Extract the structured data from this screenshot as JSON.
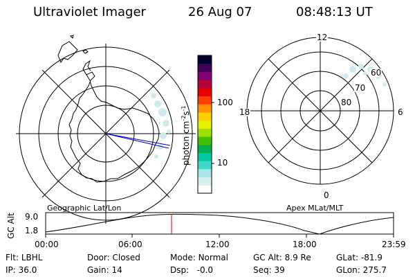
{
  "header": {
    "instrument": "Ultraviolet Imager",
    "date": "26 Aug 07",
    "time": "08:48:13 UT"
  },
  "colorbar": {
    "unit_prefix": "photon cm",
    "unit_exp1": "-2",
    "unit_mid": "s",
    "unit_exp2": "-1",
    "ticks": [
      "100",
      "10"
    ],
    "colors": [
      "#ffffff",
      "#d8f0f0",
      "#a8e8e8",
      "#40d8c8",
      "#00c8a0",
      "#00b050",
      "#40c000",
      "#a0e000",
      "#e8f000",
      "#ffd000",
      "#ff9000",
      "#ff4000",
      "#e80000",
      "#b8003c",
      "#80006e",
      "#40005a",
      "#000030"
    ]
  },
  "left_map": {
    "caption": "Geographic Lat/Lon"
  },
  "right_map": {
    "caption": "Apex MLat/MLT",
    "mlt_labels": {
      "top": "12",
      "left": "18",
      "right": "6",
      "bottom": "0"
    },
    "lat_labels": [
      "60",
      "70",
      "80"
    ]
  },
  "altitude_plot": {
    "ylabel": "GC Alt",
    "y_ticks": [
      "9.0",
      "1.8"
    ],
    "x_ticks": [
      "00:00",
      "06:00",
      "12:00",
      "18:00",
      "23:59"
    ]
  },
  "status": {
    "row1": [
      {
        "label": "Flt:",
        "value": "LBHL"
      },
      {
        "label": "Door:",
        "value": "Closed"
      },
      {
        "label": "Mode:",
        "value": "Normal"
      },
      {
        "label": "GC Alt:",
        "value": "8.9 Re"
      },
      {
        "label": "GLat:",
        "value": "-81.9"
      }
    ],
    "row2": [
      {
        "label": "IP:",
        "value": "36.0"
      },
      {
        "label": "Gain:",
        "value": "14"
      },
      {
        "label": "Dsp:",
        "value": "-0.0"
      },
      {
        "label": "Seq:",
        "value": "39"
      },
      {
        "label": "GLon:",
        "value": "275.7"
      }
    ]
  }
}
